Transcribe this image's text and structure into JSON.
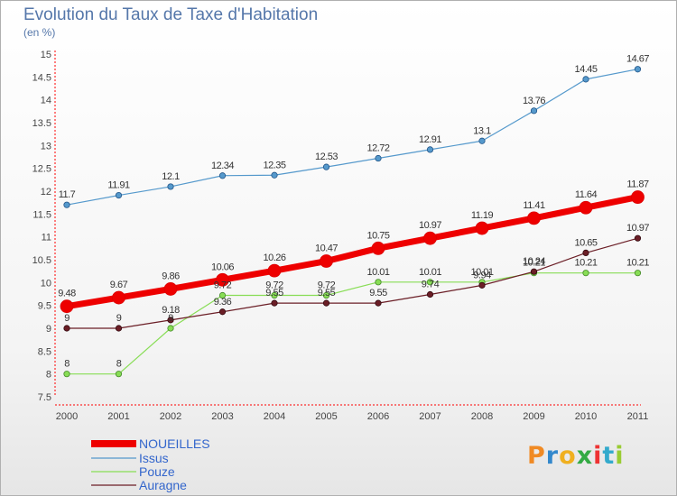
{
  "title": "Evolution du Taux de Taxe d'Habitation",
  "subtitle": "(en %)",
  "logo_text": "Proxiti",
  "colors": {
    "NOUEILLES": "#ee0000",
    "Issus": "#5599cc",
    "Pouze": "#88dd55",
    "Auragne": "#6b1e26",
    "axis": "#ff0000",
    "label": "#333333",
    "legend_text": "#3366cc"
  },
  "chart_data": {
    "type": "line",
    "title": "Evolution du Taux de Taxe d'Habitation",
    "ylabel": "(en %)",
    "xlabel": "",
    "x": [
      "2000",
      "2001",
      "2002",
      "2003",
      "2004",
      "2005",
      "2006",
      "2007",
      "2008",
      "2009",
      "2010",
      "2011"
    ],
    "ylim": [
      7.5,
      15
    ],
    "yticks": [
      "7.5",
      "8",
      "8.5",
      "9",
      "9.5",
      "10",
      "10.5",
      "11",
      "11.5",
      "12",
      "12.5",
      "13",
      "13.5",
      "14",
      "14.5",
      "15"
    ],
    "grid": false,
    "legend_position": "bottom-left",
    "series": [
      {
        "name": "NOUEILLES",
        "values": [
          9.48,
          9.67,
          9.86,
          10.06,
          10.26,
          10.47,
          10.75,
          10.97,
          11.19,
          11.41,
          11.64,
          11.87
        ],
        "labels": [
          "9.48",
          "9.67",
          "9.86",
          "10.06",
          "10.26",
          "10.47",
          "10.75",
          "10.97",
          "11.19",
          "11.41",
          "11.64",
          "11.87"
        ]
      },
      {
        "name": "Issus",
        "values": [
          11.7,
          11.91,
          12.1,
          12.34,
          12.35,
          12.53,
          12.72,
          12.91,
          13.1,
          13.76,
          14.45,
          14.67
        ],
        "labels": [
          "11.7",
          "11.91",
          "12.1",
          "12.34",
          "12.35",
          "12.53",
          "12.72",
          "12.91",
          "13.1",
          "13.76",
          "14.45",
          "14.67"
        ]
      },
      {
        "name": "Pouze",
        "values": [
          8,
          8,
          9,
          9.72,
          9.72,
          9.72,
          10.01,
          10.01,
          10.01,
          10.21,
          10.21,
          10.21
        ],
        "labels": [
          "8",
          "8",
          "9",
          "9.72",
          "9.72",
          "9.72",
          "10.01",
          "10.01",
          "10.01",
          "10.21",
          "10.21",
          "10.21"
        ]
      },
      {
        "name": "Auragne",
        "values": [
          9,
          9,
          9.18,
          9.36,
          9.55,
          9.55,
          9.55,
          9.74,
          9.94,
          10.24,
          10.65,
          10.97
        ],
        "labels": [
          "9",
          "9",
          "9.18",
          "9.36",
          "9.55",
          "9.55",
          "9.55",
          "9.74",
          "9.94",
          "10.24",
          "10.65",
          "10.97"
        ]
      }
    ]
  }
}
